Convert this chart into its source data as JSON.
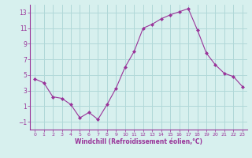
{
  "x": [
    0,
    1,
    2,
    3,
    4,
    5,
    6,
    7,
    8,
    9,
    10,
    11,
    12,
    13,
    14,
    15,
    16,
    17,
    18,
    19,
    20,
    21,
    22,
    23
  ],
  "y": [
    4.5,
    4.0,
    2.2,
    2.0,
    1.2,
    -0.5,
    0.2,
    -0.7,
    1.2,
    3.3,
    6.0,
    8.0,
    11.0,
    11.5,
    12.2,
    12.7,
    13.1,
    13.5,
    10.8,
    7.8,
    6.3,
    5.2,
    4.8,
    3.5
  ],
  "line_color": "#993399",
  "marker": "D",
  "marker_size": 2,
  "bg_color": "#d7f0ee",
  "grid_color": "#b0d8d8",
  "xlabel": "Windchill (Refroidissement éolien,°C)",
  "xlabel_color": "#993399",
  "tick_color": "#993399",
  "ylim": [
    -2,
    14
  ],
  "xlim": [
    -0.5,
    23.5
  ],
  "yticks": [
    -1,
    1,
    3,
    5,
    7,
    9,
    11,
    13
  ],
  "xticks": [
    0,
    1,
    2,
    3,
    4,
    5,
    6,
    7,
    8,
    9,
    10,
    11,
    12,
    13,
    14,
    15,
    16,
    17,
    18,
    19,
    20,
    21,
    22,
    23
  ]
}
